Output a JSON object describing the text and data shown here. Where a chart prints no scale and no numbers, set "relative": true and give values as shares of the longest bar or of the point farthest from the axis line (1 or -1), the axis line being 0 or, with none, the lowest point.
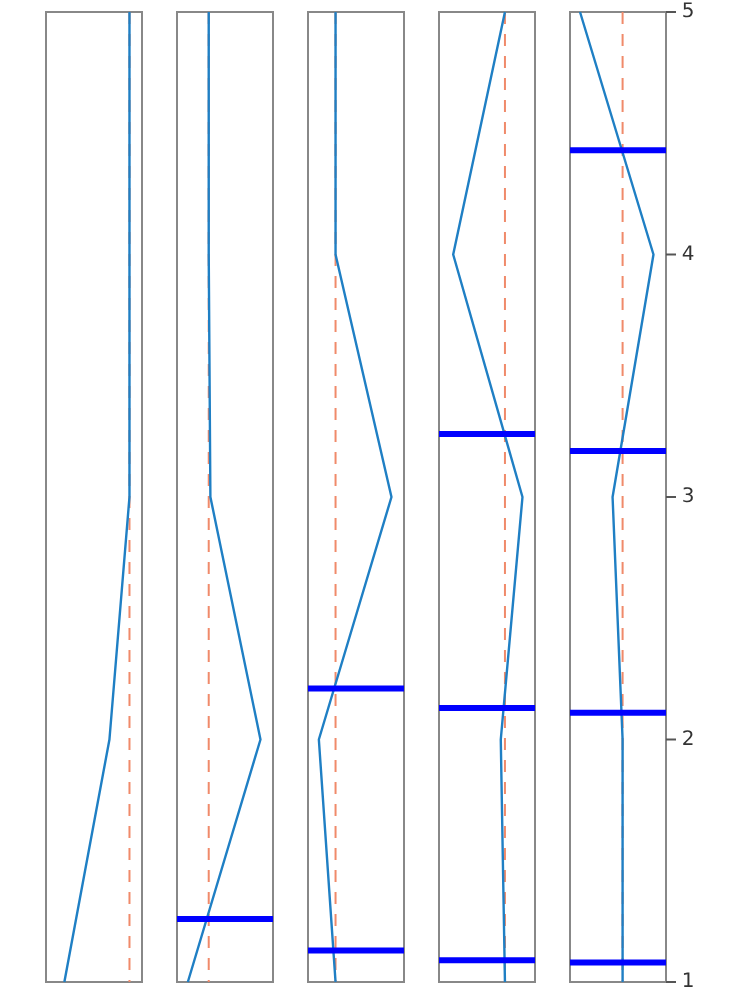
{
  "chart_data": [
    {
      "type": "line",
      "orientation": "horizontal",
      "relative": true,
      "x": [
        1,
        2,
        3,
        4,
        5
      ],
      "ylim": [
        1,
        5
      ],
      "tick_labels": false,
      "line_style": "solid",
      "series": [
        {
          "color": "#1f7fc4",
          "values": [
            0.22,
            0.76,
            1,
            1,
            1
          ]
        }
      ],
      "ref_lines": [
        {
          "axis": "x",
          "value": 1,
          "color": "#f08a6a",
          "line_style": "dashed"
        }
      ]
    },
    {
      "type": "line",
      "orientation": "horizontal",
      "relative": true,
      "x": [
        1,
        2,
        3,
        4,
        5
      ],
      "ylim": [
        1,
        5
      ],
      "tick_labels": false,
      "line_style": "solid",
      "series": [
        {
          "color": "#1f7fc4",
          "values": [
            0.13,
            1,
            0.4,
            0.38,
            0.38
          ]
        }
      ],
      "ref_lines": [
        {
          "axis": "x",
          "value": 0.38,
          "color": "#f08a6a",
          "line_style": "dashed"
        },
        {
          "axis": "y",
          "value": 1.26,
          "color": "#0000ff",
          "line_style": "solid"
        }
      ]
    },
    {
      "type": "line",
      "orientation": "horizontal",
      "relative": true,
      "x": [
        1,
        2,
        3,
        4,
        5
      ],
      "ylim": [
        1,
        5
      ],
      "tick_labels": false,
      "line_style": "solid",
      "series": [
        {
          "color": "#1f7fc4",
          "values": [
            0.33,
            0.13,
            1,
            0.33,
            0.33
          ]
        }
      ],
      "ref_lines": [
        {
          "axis": "x",
          "value": 0.33,
          "color": "#f08a6a",
          "line_style": "dashed"
        },
        {
          "axis": "y",
          "value": 1.13,
          "color": "#0000ff",
          "line_style": "solid"
        },
        {
          "axis": "y",
          "value": 2.21,
          "color": "#0000ff",
          "line_style": "solid"
        }
      ]
    },
    {
      "type": "line",
      "orientation": "horizontal",
      "relative": true,
      "x": [
        1,
        2,
        3,
        4,
        5
      ],
      "ylim": [
        1,
        5
      ],
      "tick_labels": false,
      "line_style": "solid",
      "series": [
        {
          "color": "#1f7fc4",
          "values": [
            0.79,
            0.74,
            1,
            0.17,
            0.79
          ]
        }
      ],
      "ref_lines": [
        {
          "axis": "x",
          "value": 0.79,
          "color": "#f08a6a",
          "line_style": "dashed"
        },
        {
          "axis": "y",
          "value": 1.09,
          "color": "#0000ff",
          "line_style": "solid"
        },
        {
          "axis": "y",
          "value": 2.13,
          "color": "#0000ff",
          "line_style": "solid"
        },
        {
          "axis": "y",
          "value": 3.26,
          "color": "#0000ff",
          "line_style": "solid"
        }
      ]
    },
    {
      "type": "line",
      "orientation": "horizontal",
      "relative": true,
      "x": [
        1,
        2,
        3,
        4,
        5
      ],
      "ylim": [
        1,
        5
      ],
      "yticks": [
        1,
        2,
        3,
        4,
        5
      ],
      "tick_labels": "y",
      "line_style": "solid",
      "series": [
        {
          "color": "#1f7fc4",
          "values": [
            0.63,
            0.63,
            0.51,
            1,
            0.12
          ]
        }
      ],
      "ref_lines": [
        {
          "axis": "x",
          "value": 0.63,
          "color": "#f08a6a",
          "line_style": "dashed"
        },
        {
          "axis": "y",
          "value": 1.08,
          "color": "#0000ff",
          "line_style": "solid"
        },
        {
          "axis": "y",
          "value": 2.11,
          "color": "#0000ff",
          "line_style": "solid"
        },
        {
          "axis": "y",
          "value": 3.19,
          "color": "#0000ff",
          "line_style": "solid"
        },
        {
          "axis": "y",
          "value": 4.43,
          "color": "#0000ff",
          "line_style": "solid"
        }
      ]
    }
  ]
}
